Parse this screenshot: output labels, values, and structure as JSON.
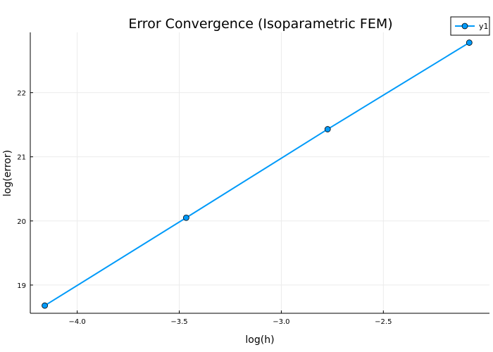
{
  "chart_data": {
    "type": "line",
    "title": "Error Convergence (Isoparametric FEM)",
    "xlabel": "log(h)",
    "ylabel": "log(error)",
    "xlim": [
      -4.23,
      -1.98
    ],
    "ylim": [
      18.56,
      22.94
    ],
    "xticks": [
      -4.0,
      -3.5,
      -3.0,
      -2.5
    ],
    "xtick_labels": [
      "−4.0",
      "−3.5",
      "−3.0",
      "−2.5"
    ],
    "yticks": [
      19,
      20,
      21,
      22
    ],
    "ytick_labels": [
      "19",
      "20",
      "21",
      "22"
    ],
    "grid": true,
    "legend_position": "top-right",
    "series": [
      {
        "name": "y1",
        "color": "#009af9",
        "marker": "circle",
        "x": [
          -4.159,
          -3.466,
          -2.773,
          -2.079
        ],
        "y": [
          18.68,
          20.05,
          21.43,
          22.78
        ]
      }
    ]
  }
}
